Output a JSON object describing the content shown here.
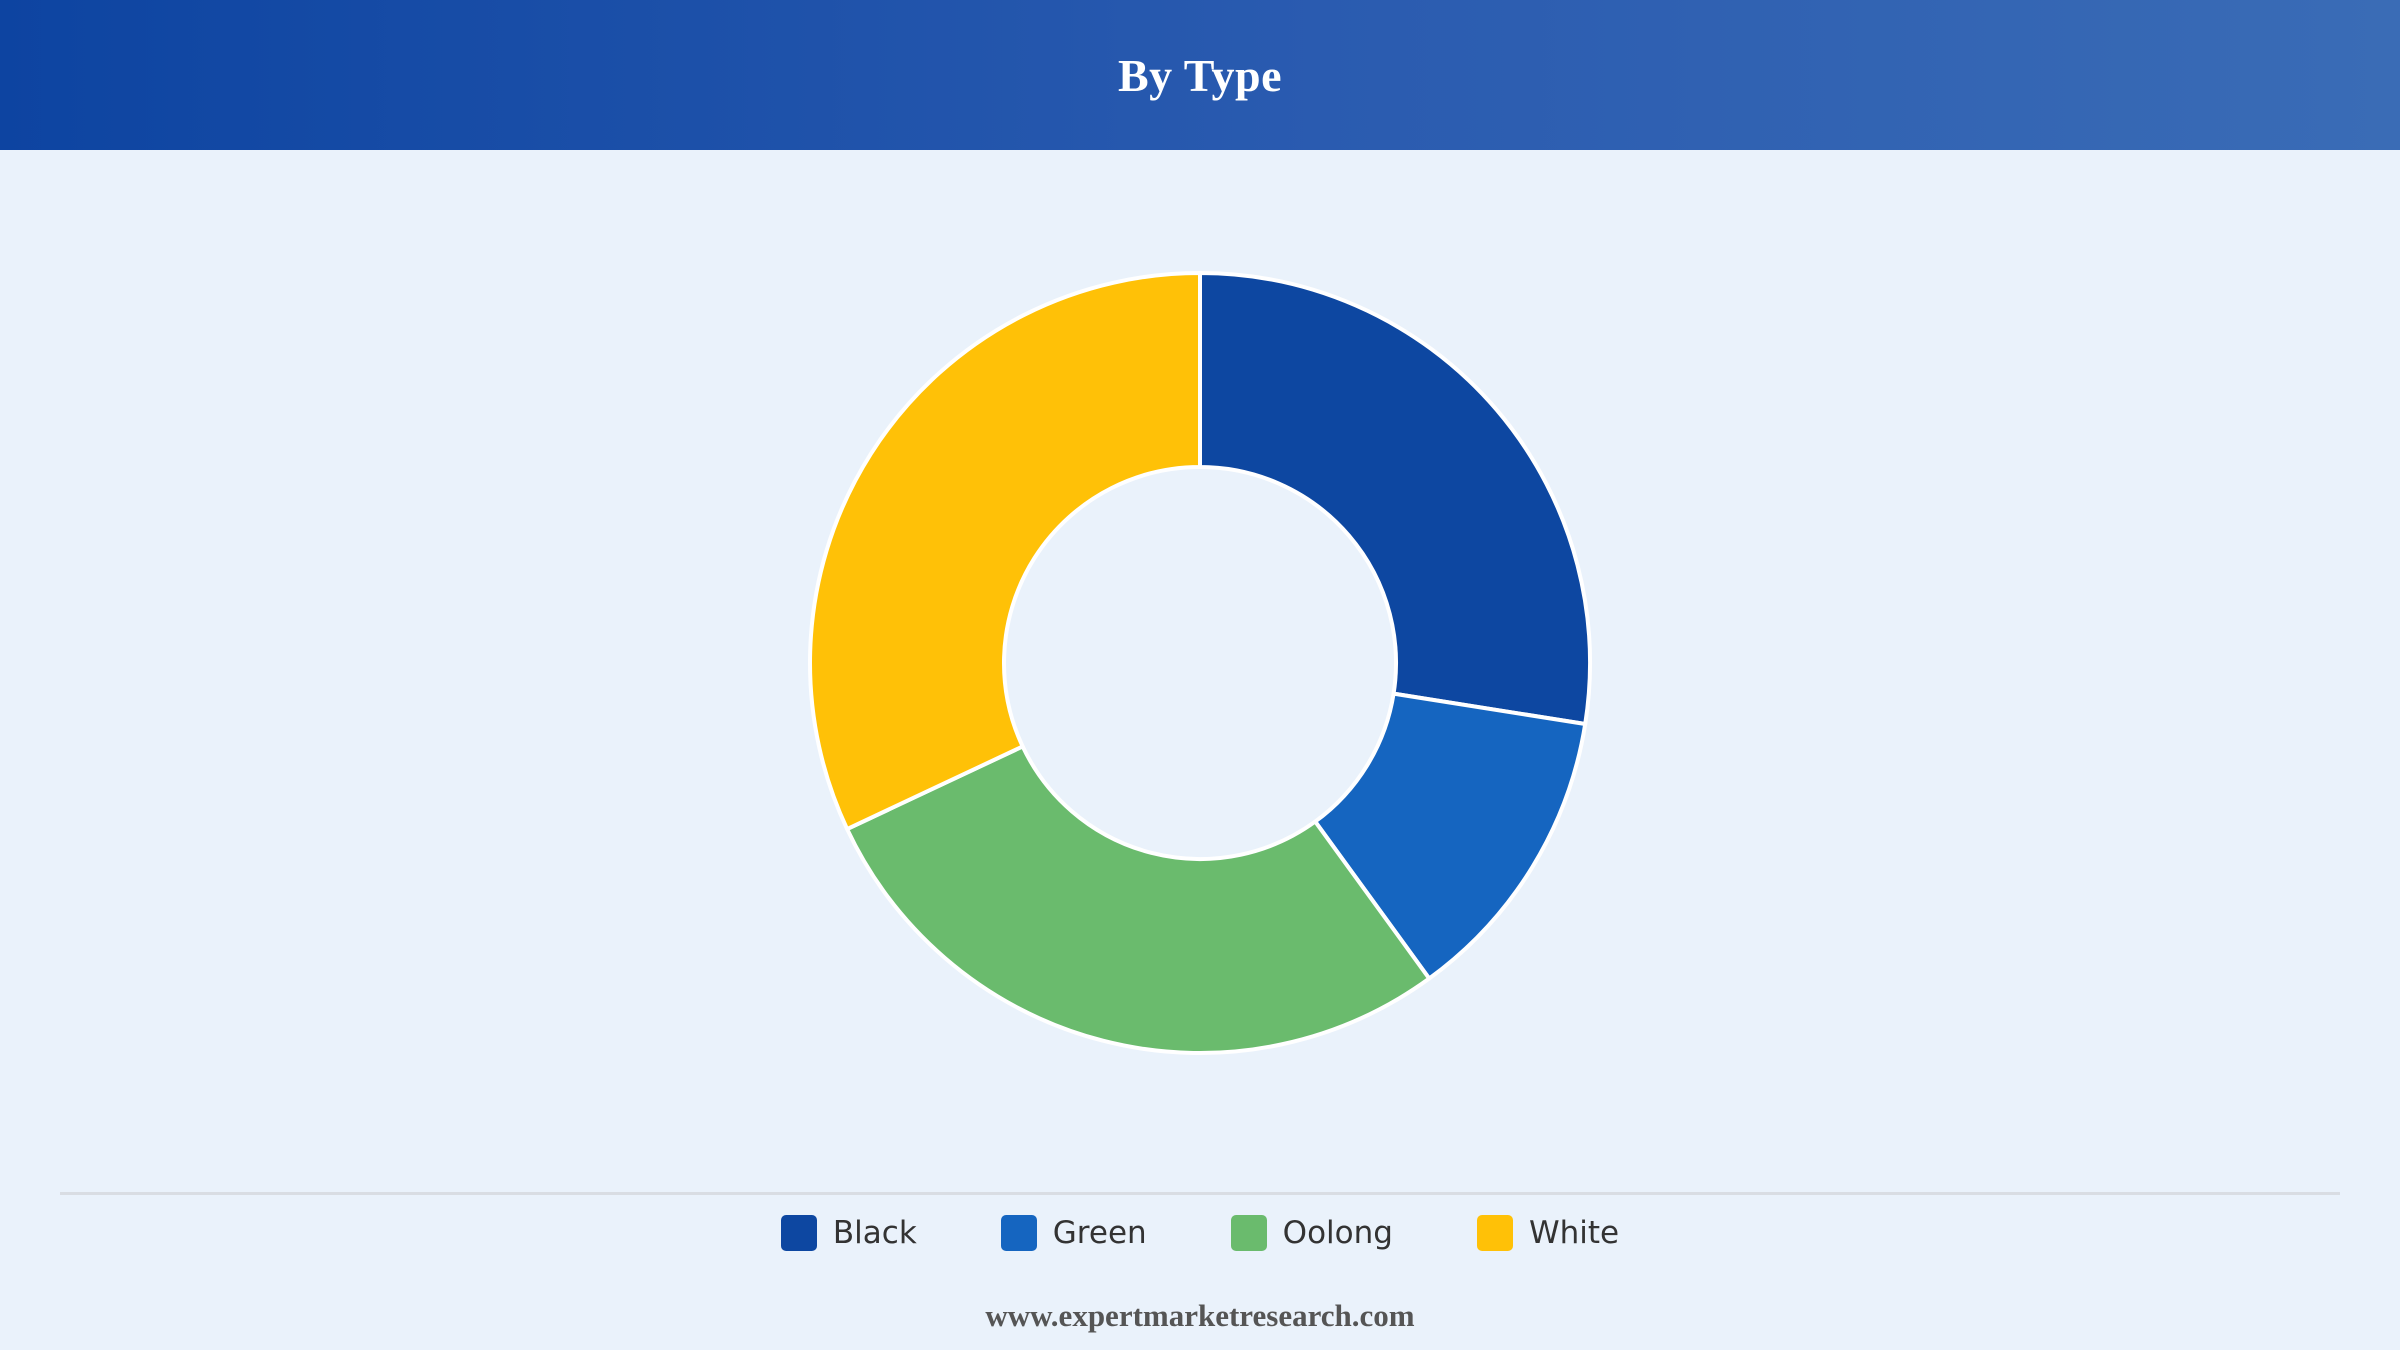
{
  "header": {
    "title": "By Type"
  },
  "chart_data": {
    "type": "pie",
    "variant": "donut",
    "title": "By Type",
    "categories": [
      "Black",
      "Green",
      "Oolong",
      "White"
    ],
    "values": [
      27.5,
      12.5,
      28.0,
      32.0
    ],
    "unit": "%",
    "colors": [
      "#0d47a1",
      "#1565c0",
      "#6abb6d",
      "#ffc107"
    ],
    "legend_position": "bottom",
    "start_angle_deg": 0,
    "direction": "clockwise"
  },
  "legend": {
    "items": [
      {
        "label": "Black",
        "color": "#0d47a1"
      },
      {
        "label": "Green",
        "color": "#1565c0"
      },
      {
        "label": "Oolong",
        "color": "#6abb6d"
      },
      {
        "label": "White",
        "color": "#ffc107"
      }
    ]
  },
  "footer": {
    "source": "www.expertmarketresearch.com"
  }
}
